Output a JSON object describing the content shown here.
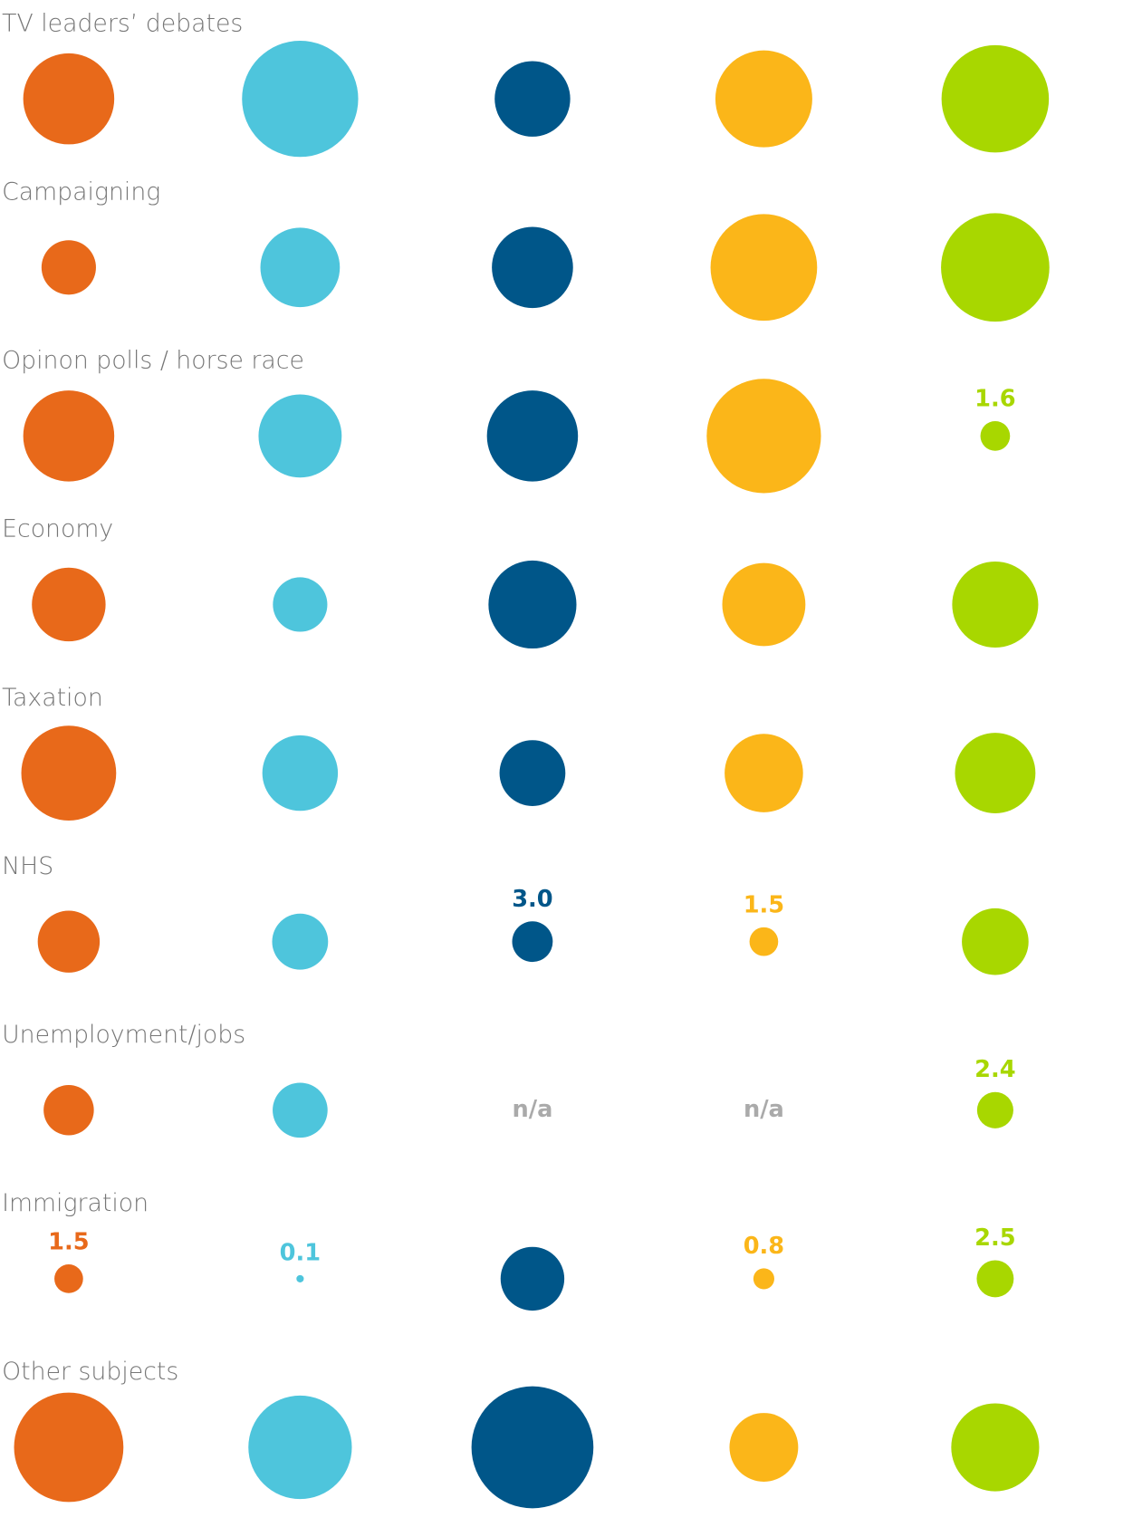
{
  "chart_data": {
    "type": "bubble",
    "categories": [
      "TV leaders’ debates",
      "Campaigning",
      "Opinon polls / horse race",
      "Economy",
      "Taxation",
      "NHS",
      "Unemployment/jobs",
      "Immigration",
      "Other subjects"
    ],
    "series": [
      {
        "color": "#e8691a",
        "values": [
          15.1,
          5.4,
          15.1,
          9.9,
          16.4,
          7.0,
          4.6,
          1.5,
          21.8
        ],
        "value_labels": [
          null,
          null,
          null,
          null,
          null,
          null,
          null,
          "1.5",
          null
        ]
      },
      {
        "color": "#4ec5dc",
        "values": [
          24.6,
          11.5,
          12.6,
          5.4,
          10.4,
          5.7,
          5.5,
          0.1,
          19.5
        ],
        "value_labels": [
          null,
          null,
          null,
          null,
          null,
          null,
          null,
          "0.1",
          null
        ]
      },
      {
        "color": "#005689",
        "values": [
          10.4,
          12.0,
          15.1,
          14.1,
          7.9,
          3.0,
          null,
          7.4,
          27.1
        ],
        "value_labels": [
          null,
          null,
          null,
          null,
          null,
          "3.0",
          "n/a",
          null,
          null
        ]
      },
      {
        "color": "#fbb619",
        "values": [
          17.1,
          20.7,
          23.8,
          12.6,
          11.2,
          1.5,
          null,
          0.8,
          8.6
        ],
        "value_labels": [
          null,
          null,
          null,
          null,
          null,
          "1.5",
          "n/a",
          "0.8",
          null
        ]
      },
      {
        "color": "#a8d700",
        "values": [
          21.0,
          21.4,
          1.6,
          13.5,
          11.8,
          8.1,
          2.4,
          2.5,
          14.1
        ],
        "value_labels": [
          null,
          null,
          "1.6",
          null,
          null,
          null,
          "2.4",
          "2.5",
          null
        ]
      }
    ]
  }
}
